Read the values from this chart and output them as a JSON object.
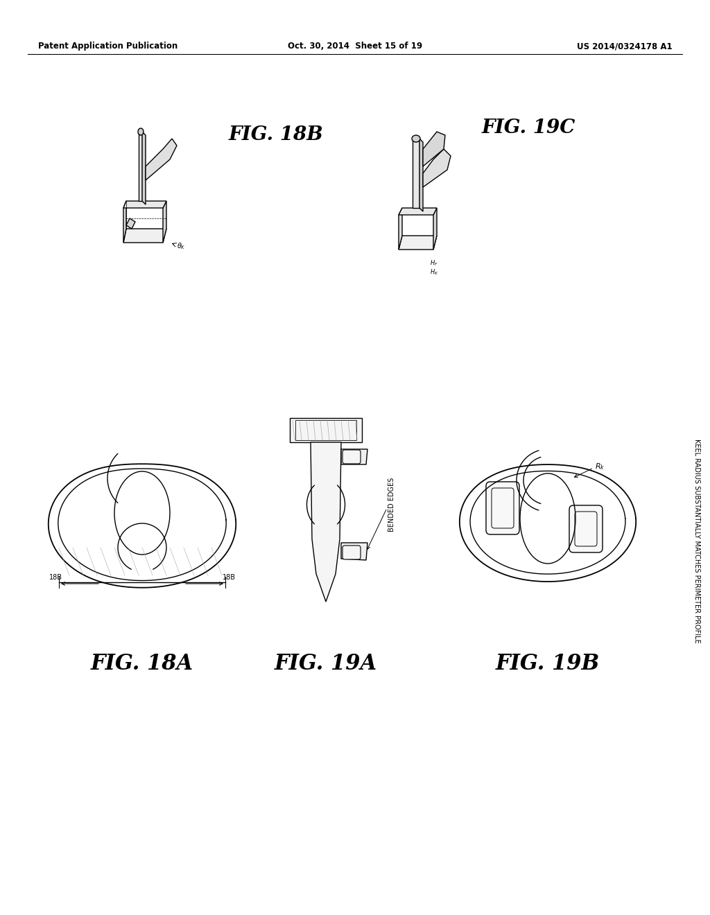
{
  "background_color": "#ffffff",
  "header_left": "Patent Application Publication",
  "header_center": "Oct. 30, 2014  Sheet 15 of 19",
  "header_right": "US 2014/0324178 A1",
  "side_text": "KEEL RADIUS SUBSTANTIALLY MATCHES PERIMETER PROFILE",
  "lw": 1.0,
  "gray": "#888888",
  "light_gray": "#cccccc"
}
